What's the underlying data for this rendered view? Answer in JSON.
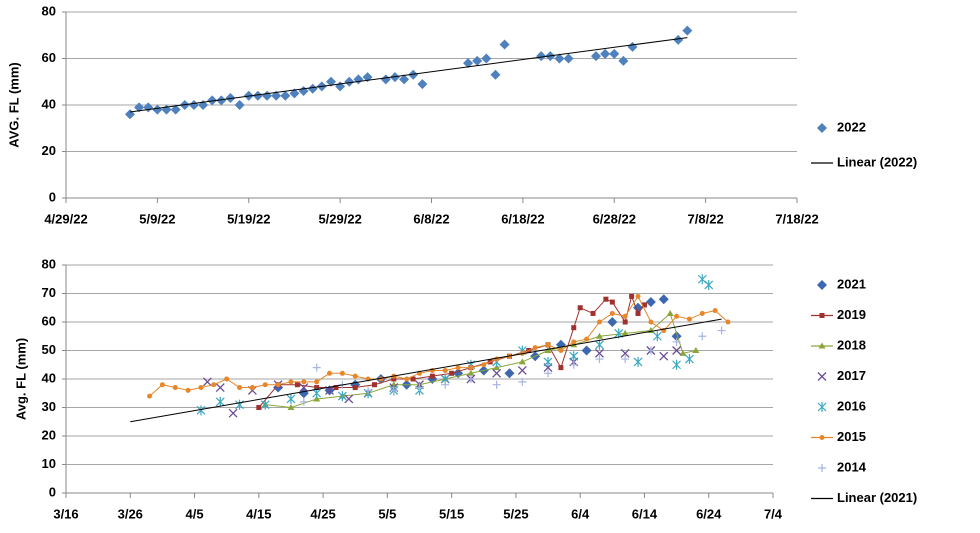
{
  "chart_data": [
    {
      "type": "scatter",
      "y_label": "AVG. FL (mm)",
      "grid": true,
      "legend": "right",
      "xlim": [
        119,
        199
      ],
      "xticks": [
        {
          "value": 119,
          "label": "4/29/22"
        },
        {
          "value": 129,
          "label": "5/9/22"
        },
        {
          "value": 139,
          "label": "5/19/22"
        },
        {
          "value": 149,
          "label": "5/29/22"
        },
        {
          "value": 159,
          "label": "6/8/22"
        },
        {
          "value": 169,
          "label": "6/18/22"
        },
        {
          "value": 179,
          "label": "6/28/22"
        },
        {
          "value": 189,
          "label": "7/8/22"
        },
        {
          "value": 199,
          "label": "7/18/22"
        }
      ],
      "ylim": [
        0,
        80
      ],
      "yticks": [
        0,
        20,
        40,
        60,
        80
      ],
      "series": [
        {
          "name": "2022",
          "color": "#4f81bd",
          "marker": "diamond",
          "line": false,
          "x": [
            126,
            127,
            128,
            129,
            130,
            131,
            132,
            133,
            134,
            135,
            136,
            137,
            138,
            139,
            140,
            141,
            142,
            143,
            144,
            145,
            146,
            147,
            148,
            149,
            150,
            151,
            152,
            154,
            155,
            156,
            157,
            158,
            163,
            164,
            165,
            166,
            167,
            171,
            172,
            173,
            174,
            177,
            178,
            179,
            180,
            181,
            186,
            187
          ],
          "values": [
            36,
            39,
            39,
            38,
            38,
            38,
            40,
            40,
            40,
            42,
            42,
            43,
            40,
            44,
            44,
            44,
            44,
            44,
            45,
            46,
            47,
            48,
            50,
            48,
            50,
            51,
            52,
            51,
            52,
            51,
            53,
            49,
            58,
            59,
            60,
            53,
            66,
            61,
            61,
            60,
            60,
            61,
            62,
            62,
            59,
            65,
            68,
            72
          ]
        },
        {
          "name": "Linear (2022)",
          "color": "#000000",
          "marker": "none",
          "line": true,
          "x": [
            126,
            187
          ],
          "values": [
            37,
            69
          ]
        }
      ]
    },
    {
      "type": "scatter",
      "y_label": "Avg. FL (mm)",
      "grid": true,
      "legend": "right",
      "xlim": [
        75,
        185
      ],
      "xticks": [
        {
          "value": 75,
          "label": "3/16"
        },
        {
          "value": 85,
          "label": "3/26"
        },
        {
          "value": 95,
          "label": "4/5"
        },
        {
          "value": 105,
          "label": "4/15"
        },
        {
          "value": 115,
          "label": "4/25"
        },
        {
          "value": 125,
          "label": "5/5"
        },
        {
          "value": 135,
          "label": "5/15"
        },
        {
          "value": 145,
          "label": "5/25"
        },
        {
          "value": 155,
          "label": "6/4"
        },
        {
          "value": 165,
          "label": "6/14"
        },
        {
          "value": 175,
          "label": "6/24"
        },
        {
          "value": 185,
          "label": "7/4"
        }
      ],
      "ylim": [
        0,
        80
      ],
      "yticks": [
        0,
        10,
        20,
        30,
        40,
        50,
        60,
        70,
        80
      ],
      "series": [
        {
          "name": "2021",
          "color": "#3d68b0",
          "marker": "diamond",
          "line": false,
          "x": [
            108,
            112,
            116,
            120,
            124,
            128,
            132,
            136,
            140,
            144,
            148,
            152,
            156,
            160,
            164,
            166,
            168,
            170
          ],
          "values": [
            37,
            35,
            36,
            38,
            40,
            38,
            40,
            42,
            43,
            42,
            48,
            52,
            50,
            60,
            65,
            67,
            68,
            55
          ]
        },
        {
          "name": "2019",
          "color": "#a0312d",
          "marker": "square",
          "line": true,
          "x": [
            105,
            108,
            111,
            114,
            117,
            120,
            123,
            126,
            129,
            132,
            135,
            138,
            141,
            144,
            147,
            150,
            152,
            154,
            155,
            157,
            159,
            160,
            162,
            163,
            164,
            165
          ],
          "values": [
            30,
            38,
            38,
            37,
            37,
            37,
            38,
            40,
            40,
            41,
            42,
            44,
            46,
            48,
            50,
            52,
            44,
            58,
            65,
            63,
            68,
            67,
            60,
            69,
            63,
            66
          ]
        },
        {
          "name": "2018",
          "color": "#8aa63a",
          "marker": "triangle",
          "line": true,
          "x": [
            106,
            110,
            114,
            118,
            122,
            126,
            130,
            134,
            138,
            142,
            146,
            150,
            154,
            158,
            162,
            166,
            169,
            171,
            173
          ],
          "values": [
            31,
            30,
            33,
            34,
            35,
            38,
            38,
            40,
            42,
            44,
            46,
            50,
            52,
            55,
            56,
            57,
            63,
            49,
            50
          ]
        },
        {
          "name": "2017",
          "color": "#6a4c93",
          "marker": "x",
          "line": false,
          "x": [
            97,
            99,
            101,
            104,
            108,
            112,
            116,
            119,
            122,
            126,
            130,
            134,
            138,
            142,
            146,
            150,
            154,
            158,
            162,
            166,
            168,
            170
          ],
          "values": [
            39,
            37,
            28,
            36,
            38,
            37,
            36,
            33,
            35,
            37,
            38,
            40,
            40,
            42,
            43,
            44,
            46,
            49,
            49,
            50,
            48,
            50
          ]
        },
        {
          "name": "2016",
          "color": "#3aa8c1",
          "marker": "asterisk",
          "line": false,
          "x": [
            96,
            99,
            102,
            106,
            110,
            114,
            118,
            122,
            126,
            130,
            134,
            138,
            142,
            146,
            150,
            154,
            158,
            161,
            164,
            167,
            170,
            172,
            174,
            175
          ],
          "values": [
            29,
            32,
            31,
            31,
            33,
            35,
            34,
            35,
            36,
            36,
            40,
            45,
            46,
            50,
            46,
            48,
            52,
            56,
            46,
            55,
            45,
            47,
            75,
            73
          ]
        },
        {
          "name": "2015",
          "color": "#e8862a",
          "marker": "circle",
          "line": true,
          "x": [
            88,
            90,
            92,
            94,
            96,
            98,
            100,
            102,
            104,
            106,
            108,
            110,
            112,
            114,
            116,
            118,
            120,
            122,
            124,
            126,
            128,
            130,
            132,
            134,
            136,
            138,
            140,
            142,
            144,
            146,
            148,
            150,
            152,
            154,
            156,
            158,
            160,
            162,
            164,
            166,
            168,
            170,
            172,
            174,
            176,
            178
          ],
          "values": [
            34,
            38,
            37,
            36,
            37,
            38,
            40,
            37,
            37,
            38,
            38,
            39,
            39,
            39,
            42,
            42,
            41,
            40,
            40,
            41,
            40,
            42,
            43,
            43,
            44,
            44,
            45,
            47,
            48,
            49,
            51,
            52,
            50,
            53,
            54,
            60,
            63,
            62,
            69,
            60,
            57,
            62,
            61,
            63,
            64,
            60
          ]
        },
        {
          "name": "2014",
          "color": "#a5b4e0",
          "marker": "plus",
          "line": false,
          "x": [
            112,
            114,
            118,
            122,
            126,
            130,
            134,
            138,
            142,
            146,
            150,
            154,
            158,
            162,
            166,
            170,
            174,
            177
          ],
          "values": [
            32,
            44,
            38,
            36,
            36,
            37,
            38,
            40,
            38,
            39,
            42,
            45,
            47,
            47,
            50,
            53,
            55,
            57
          ]
        },
        {
          "name": "Linear (2021)",
          "color": "#000000",
          "marker": "none",
          "line": true,
          "x": [
            85,
            177
          ],
          "values": [
            25,
            61
          ]
        }
      ]
    }
  ]
}
